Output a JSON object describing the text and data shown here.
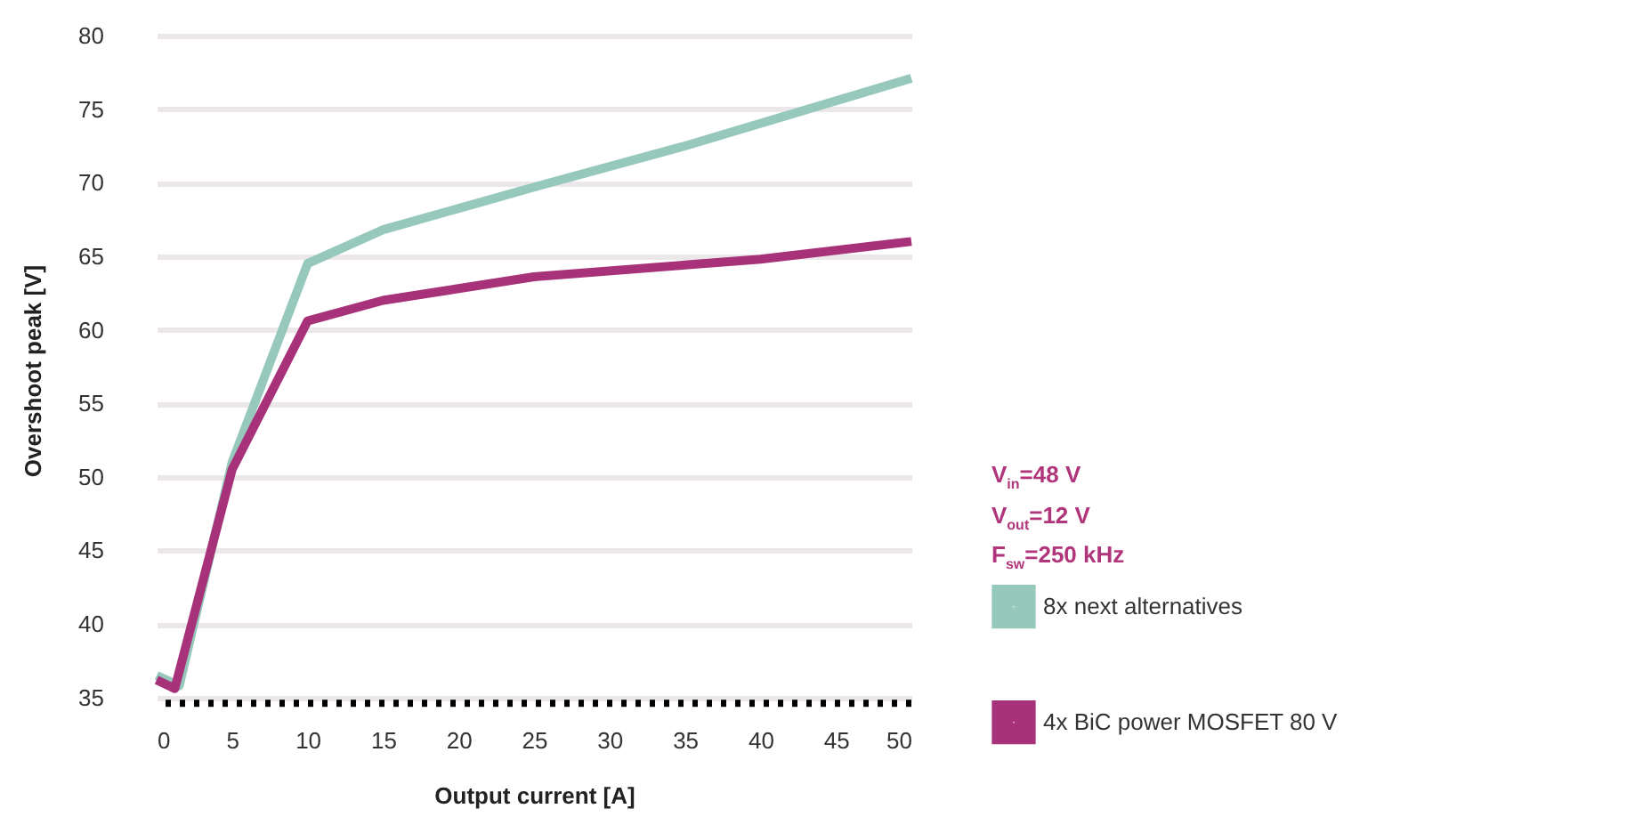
{
  "chart_data": {
    "type": "line",
    "xlabel": "Output current [A]",
    "ylabel": "Overshoot peak [V]",
    "annotations": [
      "V$_{in}$=48 V",
      "V$_{out}$=12 V",
      "F$_{sw}$=250 kHz"
    ],
    "xlim": [
      0,
      50
    ],
    "xticks": [
      0,
      5,
      10,
      15,
      20,
      25,
      30,
      35,
      40,
      45,
      50
    ],
    "ylim": [
      34.5,
      80
    ],
    "yticks": [
      35,
      40,
      45,
      50,
      55,
      60,
      65,
      70,
      75,
      80
    ],
    "grid": "y",
    "legend": "right",
    "line_style": "solid",
    "ref_lines": [
      {
        "axis": "y",
        "value": 34.6,
        "color": "#000000",
        "line_style": "dotted"
      }
    ],
    "series": [
      {
        "name": "8x next alternatives",
        "color": "#96c8bc",
        "x": [
          0,
          1.5,
          5,
          10,
          15,
          25,
          35,
          50
        ],
        "values": [
          36.5,
          35.8,
          51,
          64.5,
          66.8,
          69.7,
          72.5,
          77.1
        ]
      },
      {
        "name": "4x BiC power MOSFET 80 V",
        "color": "#a8327a",
        "x": [
          0,
          1.2,
          5,
          10,
          15,
          25,
          35,
          40,
          50
        ],
        "values": [
          36.2,
          35.6,
          50.5,
          60.6,
          62,
          63.6,
          64.4,
          64.8,
          66
        ]
      }
    ]
  }
}
